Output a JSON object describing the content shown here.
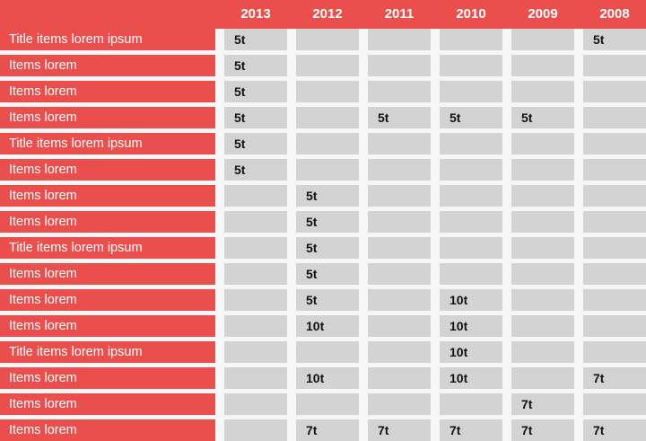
{
  "years": [
    "2013",
    "2012",
    "2011",
    "2010",
    "2009",
    "2008"
  ],
  "rows": [
    {
      "label": "Title items lorem ipsum",
      "cells": [
        "5t",
        "",
        "",
        "",
        "",
        "5t"
      ]
    },
    {
      "label": "Items lorem",
      "cells": [
        "5t",
        "",
        "",
        "",
        "",
        ""
      ]
    },
    {
      "label": "Items lorem",
      "cells": [
        "5t",
        "",
        "",
        "",
        "",
        ""
      ]
    },
    {
      "label": "Items lorem",
      "cells": [
        "5t",
        "",
        "5t",
        "5t",
        "5t",
        ""
      ]
    },
    {
      "label": "Title items lorem ipsum",
      "cells": [
        "5t",
        "",
        "",
        "",
        "",
        ""
      ]
    },
    {
      "label": "Items lorem",
      "cells": [
        "5t",
        "",
        "",
        "",
        "",
        ""
      ]
    },
    {
      "label": "Items lorem",
      "cells": [
        "",
        "5t",
        "",
        "",
        "",
        ""
      ]
    },
    {
      "label": "Items lorem",
      "cells": [
        "",
        "5t",
        "",
        "",
        "",
        ""
      ]
    },
    {
      "label": "Title items lorem ipsum",
      "cells": [
        "",
        "5t",
        "",
        "",
        "",
        ""
      ]
    },
    {
      "label": "Items lorem",
      "cells": [
        "",
        "5t",
        "",
        "",
        "",
        ""
      ]
    },
    {
      "label": "Items lorem",
      "cells": [
        "",
        "5t",
        "",
        "10t",
        "",
        ""
      ]
    },
    {
      "label": "Items lorem",
      "cells": [
        "",
        "10t",
        "",
        "10t",
        "",
        ""
      ]
    },
    {
      "label": "Title items lorem ipsum",
      "cells": [
        "",
        "",
        "",
        "10t",
        "",
        ""
      ]
    },
    {
      "label": "Items lorem",
      "cells": [
        "",
        "10t",
        "",
        "10t",
        "",
        "7t"
      ]
    },
    {
      "label": "Items lorem",
      "cells": [
        "",
        "",
        "",
        "",
        "7t",
        ""
      ]
    },
    {
      "label": "Items lorem",
      "cells": [
        "",
        "7t",
        "7t",
        "7t",
        "7t",
        "7t"
      ]
    }
  ],
  "colors": {
    "accent": "#ea4f4d",
    "cell": "#d3d3d3",
    "background": "#f6f6f6",
    "header_text": "#ffffff",
    "cell_text": "#111111"
  }
}
